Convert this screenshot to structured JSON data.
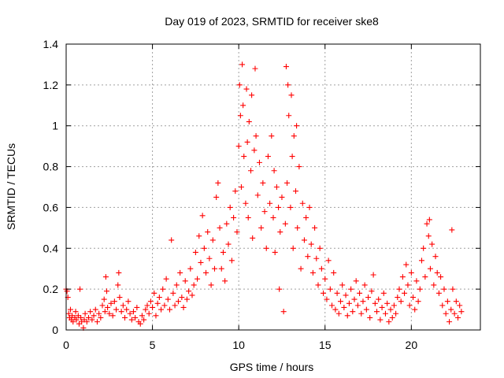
{
  "chart_data": {
    "type": "scatter",
    "title": "Day 019 of 2023, SRMTID for receiver ske8",
    "xlabel": "GPS time / hours",
    "ylabel": "SRMTID / TECUs",
    "xlim": [
      0,
      24
    ],
    "ylim": [
      0,
      1.4
    ],
    "xticks": [
      0,
      5,
      10,
      15,
      20
    ],
    "xtick_labels": [
      "0",
      "5",
      "10",
      "15",
      "20"
    ],
    "yticks": [
      0,
      0.2,
      0.4,
      0.6,
      0.8,
      1.0,
      1.2,
      1.4
    ],
    "ytick_labels": [
      "0",
      "0.2",
      "0.4",
      "0.6",
      "0.8",
      "1",
      "1.2",
      "1.4"
    ],
    "grid": true,
    "marker": "+",
    "color": "#ff0000",
    "series": [
      {
        "name": "SRMTID",
        "points": [
          [
            0.0,
            0.2
          ],
          [
            0.05,
            0.19
          ],
          [
            0.1,
            0.16
          ],
          [
            0.15,
            0.08
          ],
          [
            0.2,
            0.06
          ],
          [
            0.25,
            0.1
          ],
          [
            0.3,
            0.05
          ],
          [
            0.35,
            0.07
          ],
          [
            0.4,
            0.04
          ],
          [
            0.5,
            0.06
          ],
          [
            0.55,
            0.09
          ],
          [
            0.6,
            0.05
          ],
          [
            0.7,
            0.07
          ],
          [
            0.75,
            0.03
          ],
          [
            0.8,
            0.2
          ],
          [
            0.85,
            0.06
          ],
          [
            0.9,
            0.04
          ],
          [
            1.0,
            0.01
          ],
          [
            1.05,
            0.05
          ],
          [
            1.1,
            0.08
          ],
          [
            1.2,
            0.04
          ],
          [
            1.3,
            0.06
          ],
          [
            1.4,
            0.09
          ],
          [
            1.5,
            0.05
          ],
          [
            1.6,
            0.07
          ],
          [
            1.7,
            0.1
          ],
          [
            1.8,
            0.04
          ],
          [
            1.9,
            0.08
          ],
          [
            2.0,
            0.06
          ],
          [
            2.1,
            0.12
          ],
          [
            2.2,
            0.15
          ],
          [
            2.25,
            0.09
          ],
          [
            2.3,
            0.26
          ],
          [
            2.35,
            0.19
          ],
          [
            2.4,
            0.11
          ],
          [
            2.5,
            0.08
          ],
          [
            2.6,
            0.13
          ],
          [
            2.7,
            0.07
          ],
          [
            2.8,
            0.14
          ],
          [
            2.9,
            0.1
          ],
          [
            3.0,
            0.22
          ],
          [
            3.05,
            0.28
          ],
          [
            3.1,
            0.16
          ],
          [
            3.2,
            0.09
          ],
          [
            3.3,
            0.12
          ],
          [
            3.4,
            0.06
          ],
          [
            3.5,
            0.1
          ],
          [
            3.6,
            0.14
          ],
          [
            3.7,
            0.08
          ],
          [
            3.8,
            0.05
          ],
          [
            3.9,
            0.09
          ],
          [
            4.0,
            0.06
          ],
          [
            4.1,
            0.11
          ],
          [
            4.2,
            0.04
          ],
          [
            4.3,
            0.03
          ],
          [
            4.4,
            0.07
          ],
          [
            4.5,
            0.05
          ],
          [
            4.6,
            0.1
          ],
          [
            4.7,
            0.12
          ],
          [
            4.8,
            0.08
          ],
          [
            4.9,
            0.14
          ],
          [
            5.0,
            0.11
          ],
          [
            5.1,
            0.18
          ],
          [
            5.2,
            0.07
          ],
          [
            5.3,
            0.13
          ],
          [
            5.4,
            0.16
          ],
          [
            5.5,
            0.1
          ],
          [
            5.6,
            0.2
          ],
          [
            5.7,
            0.12
          ],
          [
            5.8,
            0.25
          ],
          [
            5.9,
            0.15
          ],
          [
            6.0,
            0.1
          ],
          [
            6.1,
            0.44
          ],
          [
            6.2,
            0.18
          ],
          [
            6.3,
            0.12
          ],
          [
            6.4,
            0.22
          ],
          [
            6.5,
            0.14
          ],
          [
            6.6,
            0.28
          ],
          [
            6.7,
            0.16
          ],
          [
            6.8,
            0.11
          ],
          [
            6.9,
            0.24
          ],
          [
            7.0,
            0.15
          ],
          [
            7.1,
            0.19
          ],
          [
            7.2,
            0.3
          ],
          [
            7.3,
            0.17
          ],
          [
            7.4,
            0.22
          ],
          [
            7.5,
            0.38
          ],
          [
            7.6,
            0.25
          ],
          [
            7.7,
            0.46
          ],
          [
            7.8,
            0.33
          ],
          [
            7.9,
            0.56
          ],
          [
            8.0,
            0.4
          ],
          [
            8.1,
            0.28
          ],
          [
            8.2,
            0.48
          ],
          [
            8.3,
            0.35
          ],
          [
            8.4,
            0.22
          ],
          [
            8.5,
            0.44
          ],
          [
            8.6,
            0.3
          ],
          [
            8.7,
            0.65
          ],
          [
            8.8,
            0.72
          ],
          [
            8.9,
            0.5
          ],
          [
            9.0,
            0.3
          ],
          [
            9.1,
            0.38
          ],
          [
            9.2,
            0.24
          ],
          [
            9.3,
            0.52
          ],
          [
            9.4,
            0.42
          ],
          [
            9.5,
            0.6
          ],
          [
            9.6,
            0.34
          ],
          [
            9.7,
            0.55
          ],
          [
            9.8,
            0.68
          ],
          [
            9.9,
            0.48
          ],
          [
            10.0,
            0.9
          ],
          [
            10.05,
            1.2
          ],
          [
            10.1,
            1.05
          ],
          [
            10.15,
            0.7
          ],
          [
            10.2,
            1.3
          ],
          [
            10.25,
            1.1
          ],
          [
            10.3,
            0.85
          ],
          [
            10.4,
            0.62
          ],
          [
            10.45,
            1.18
          ],
          [
            10.5,
            0.92
          ],
          [
            10.55,
            0.55
          ],
          [
            10.6,
            1.02
          ],
          [
            10.7,
            0.78
          ],
          [
            10.75,
            1.15
          ],
          [
            10.8,
            0.45
          ],
          [
            10.9,
            0.88
          ],
          [
            10.95,
            1.28
          ],
          [
            11.0,
            0.95
          ],
          [
            11.1,
            0.66
          ],
          [
            11.2,
            0.82
          ],
          [
            11.3,
            0.5
          ],
          [
            11.4,
            0.72
          ],
          [
            11.5,
            0.58
          ],
          [
            11.6,
            0.4
          ],
          [
            11.7,
            0.85
          ],
          [
            11.8,
            0.62
          ],
          [
            11.9,
            0.95
          ],
          [
            12.0,
            0.55
          ],
          [
            12.05,
            0.78
          ],
          [
            12.1,
            0.38
          ],
          [
            12.2,
            0.7
          ],
          [
            12.3,
            0.6
          ],
          [
            12.35,
            0.2
          ],
          [
            12.4,
            0.48
          ],
          [
            12.5,
            0.65
          ],
          [
            12.6,
            0.09
          ],
          [
            12.7,
            0.52
          ],
          [
            12.75,
            1.29
          ],
          [
            12.8,
            0.72
          ],
          [
            12.85,
            1.2
          ],
          [
            12.9,
            1.05
          ],
          [
            13.0,
            0.6
          ],
          [
            13.05,
            1.15
          ],
          [
            13.1,
            0.85
          ],
          [
            13.15,
            0.4
          ],
          [
            13.2,
            0.95
          ],
          [
            13.3,
            0.68
          ],
          [
            13.35,
            1.0
          ],
          [
            13.4,
            0.5
          ],
          [
            13.5,
            0.8
          ],
          [
            13.6,
            0.3
          ],
          [
            13.7,
            0.62
          ],
          [
            13.8,
            0.44
          ],
          [
            13.9,
            0.55
          ],
          [
            14.0,
            0.36
          ],
          [
            14.1,
            0.6
          ],
          [
            14.2,
            0.42
          ],
          [
            14.3,
            0.28
          ],
          [
            14.4,
            0.5
          ],
          [
            14.5,
            0.35
          ],
          [
            14.6,
            0.22
          ],
          [
            14.7,
            0.4
          ],
          [
            14.8,
            0.3
          ],
          [
            14.9,
            0.18
          ],
          [
            15.0,
            0.25
          ],
          [
            15.1,
            0.15
          ],
          [
            15.2,
            0.34
          ],
          [
            15.3,
            0.2
          ],
          [
            15.4,
            0.12
          ],
          [
            15.5,
            0.28
          ],
          [
            15.6,
            0.1
          ],
          [
            15.7,
            0.18
          ],
          [
            15.8,
            0.08
          ],
          [
            15.9,
            0.14
          ],
          [
            16.0,
            0.22
          ],
          [
            16.1,
            0.11
          ],
          [
            16.2,
            0.17
          ],
          [
            16.3,
            0.07
          ],
          [
            16.4,
            0.13
          ],
          [
            16.5,
            0.2
          ],
          [
            16.6,
            0.09
          ],
          [
            16.7,
            0.15
          ],
          [
            16.8,
            0.24
          ],
          [
            16.9,
            0.12
          ],
          [
            17.0,
            0.18
          ],
          [
            17.1,
            0.08
          ],
          [
            17.2,
            0.14
          ],
          [
            17.3,
            0.22
          ],
          [
            17.4,
            0.1
          ],
          [
            17.5,
            0.16
          ],
          [
            17.6,
            0.06
          ],
          [
            17.7,
            0.19
          ],
          [
            17.8,
            0.27
          ],
          [
            17.9,
            0.13
          ],
          [
            18.0,
            0.09
          ],
          [
            18.1,
            0.15
          ],
          [
            18.2,
            0.05
          ],
          [
            18.3,
            0.11
          ],
          [
            18.4,
            0.18
          ],
          [
            18.5,
            0.08
          ],
          [
            18.6,
            0.13
          ],
          [
            18.7,
            0.04
          ],
          [
            18.8,
            0.1
          ],
          [
            18.9,
            0.06
          ],
          [
            19.0,
            0.12
          ],
          [
            19.1,
            0.08
          ],
          [
            19.2,
            0.16
          ],
          [
            19.3,
            0.2
          ],
          [
            19.4,
            0.14
          ],
          [
            19.5,
            0.26
          ],
          [
            19.6,
            0.18
          ],
          [
            19.7,
            0.32
          ],
          [
            19.8,
            0.22
          ],
          [
            19.9,
            0.12
          ],
          [
            20.0,
            0.28
          ],
          [
            20.1,
            0.16
          ],
          [
            20.2,
            0.1
          ],
          [
            20.3,
            0.24
          ],
          [
            20.4,
            0.14
          ],
          [
            20.5,
            0.2
          ],
          [
            20.6,
            0.34
          ],
          [
            20.7,
            0.4
          ],
          [
            20.8,
            0.26
          ],
          [
            20.9,
            0.52
          ],
          [
            21.0,
            0.46
          ],
          [
            21.05,
            0.54
          ],
          [
            21.1,
            0.3
          ],
          [
            21.2,
            0.42
          ],
          [
            21.3,
            0.22
          ],
          [
            21.4,
            0.36
          ],
          [
            21.5,
            0.28
          ],
          [
            21.6,
            0.18
          ],
          [
            21.7,
            0.26
          ],
          [
            21.8,
            0.12
          ],
          [
            21.9,
            0.2
          ],
          [
            22.0,
            0.08
          ],
          [
            22.1,
            0.14
          ],
          [
            22.2,
            0.04
          ],
          [
            22.3,
            0.1
          ],
          [
            22.35,
            0.49
          ],
          [
            22.4,
            0.2
          ],
          [
            22.5,
            0.08
          ],
          [
            22.6,
            0.14
          ],
          [
            22.7,
            0.06
          ],
          [
            22.8,
            0.12
          ],
          [
            22.9,
            0.09
          ]
        ]
      }
    ]
  }
}
